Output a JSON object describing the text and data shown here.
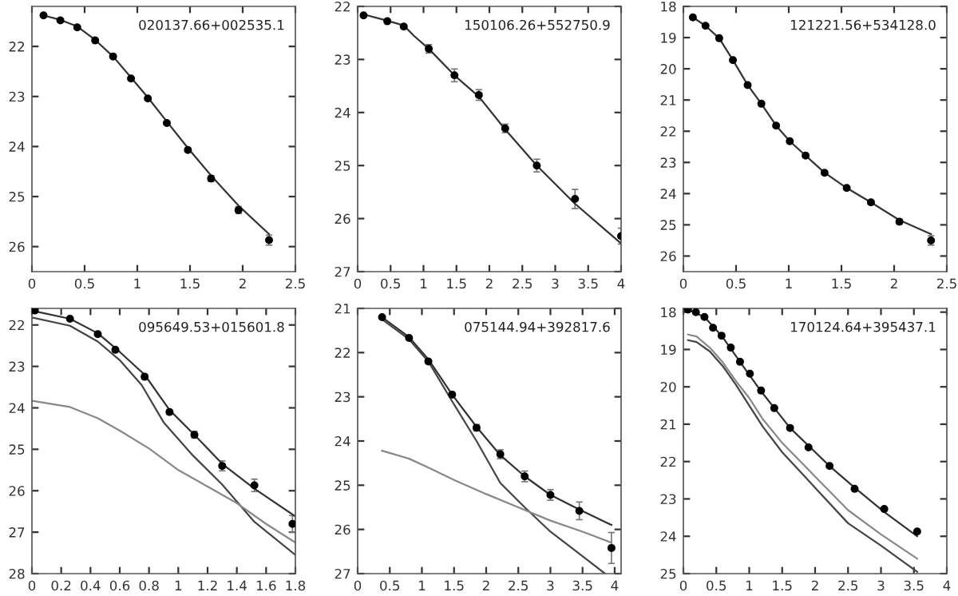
{
  "chart_data": [
    {
      "type": "scatter",
      "annotations": [
        "020137.66+002535.1"
      ],
      "xlim": [
        0,
        2.5
      ],
      "ylim": [
        26.5,
        21.2
      ],
      "xticks": [
        0,
        0.5,
        1,
        1.5,
        2,
        2.5
      ],
      "yticks": [
        22,
        23,
        24,
        25,
        26
      ],
      "grid": false,
      "series": [
        {
          "marker": "circle",
          "color": "#000000",
          "x": [
            0.11,
            0.27,
            0.43,
            0.6,
            0.77,
            0.94,
            1.1,
            1.28,
            1.48,
            1.7,
            1.96,
            2.25
          ],
          "values": [
            21.38,
            21.48,
            21.62,
            21.88,
            22.2,
            22.64,
            23.04,
            23.53,
            24.07,
            24.64,
            25.27,
            25.87
          ],
          "errors": [
            null,
            null,
            null,
            null,
            null,
            null,
            null,
            null,
            0.04,
            0.06,
            0.07,
            0.1
          ]
        },
        {
          "type": "line",
          "color": "#333333",
          "x": [
            0.11,
            0.27,
            0.43,
            0.6,
            0.77,
            0.94,
            1.1,
            1.28,
            1.48,
            1.7,
            1.96,
            2.25
          ],
          "values": [
            21.38,
            21.47,
            21.6,
            21.87,
            22.2,
            22.62,
            23.02,
            23.5,
            24.03,
            24.58,
            25.18,
            25.75
          ]
        }
      ]
    },
    {
      "type": "scatter",
      "annotations": [
        "150106.26+552750.9"
      ],
      "xlim": [
        0,
        4
      ],
      "ylim": [
        27,
        22
      ],
      "xticks": [
        0,
        0.5,
        1,
        1.5,
        2,
        2.5,
        3,
        3.5,
        4
      ],
      "yticks": [
        22,
        23,
        24,
        25,
        26,
        27
      ],
      "grid": false,
      "series": [
        {
          "marker": "circle",
          "color": "#000000",
          "x": [
            0.09,
            0.45,
            0.7,
            1.08,
            1.47,
            1.84,
            2.24,
            2.72,
            3.3,
            4.0
          ],
          "values": [
            22.17,
            22.28,
            22.38,
            22.8,
            23.3,
            23.67,
            24.3,
            25.0,
            25.63,
            26.33
          ],
          "errors": [
            null,
            null,
            null,
            0.08,
            0.12,
            0.1,
            0.08,
            0.12,
            0.18,
            0.15
          ]
        },
        {
          "type": "line",
          "color": "#333333",
          "x": [
            0.09,
            0.45,
            0.7,
            0.85,
            1.08,
            1.47,
            1.84,
            2.24,
            2.72,
            3.3,
            4.0
          ],
          "values": [
            22.15,
            22.27,
            22.36,
            22.55,
            22.8,
            23.3,
            23.7,
            24.32,
            25.0,
            25.72,
            26.47
          ]
        }
      ]
    },
    {
      "type": "scatter",
      "annotations": [
        "121221.56+534128.0"
      ],
      "xlim": [
        0,
        2.5
      ],
      "ylim": [
        26.5,
        18
      ],
      "xticks": [
        0,
        0.5,
        1,
        1.5,
        2,
        2.5
      ],
      "yticks": [
        18,
        19,
        20,
        21,
        22,
        23,
        24,
        25,
        26
      ],
      "grid": false,
      "series": [
        {
          "marker": "circle",
          "color": "#000000",
          "x": [
            0.09,
            0.21,
            0.34,
            0.47,
            0.61,
            0.74,
            0.88,
            1.01,
            1.16,
            1.34,
            1.55,
            1.78,
            2.05,
            2.35
          ],
          "values": [
            18.35,
            18.62,
            19.02,
            19.72,
            20.52,
            21.12,
            21.82,
            22.32,
            22.78,
            23.33,
            23.82,
            24.28,
            24.9,
            25.5
          ],
          "errors": [
            null,
            null,
            null,
            null,
            null,
            null,
            null,
            null,
            null,
            null,
            null,
            0.06,
            0.08,
            0.15
          ]
        },
        {
          "type": "line",
          "color": "#333333",
          "x": [
            0.09,
            0.21,
            0.34,
            0.47,
            0.61,
            0.74,
            0.88,
            1.01,
            1.16,
            1.34,
            1.55,
            1.78,
            2.05,
            2.35
          ],
          "values": [
            18.35,
            18.62,
            19.02,
            19.72,
            20.52,
            21.12,
            21.82,
            22.32,
            22.78,
            23.33,
            23.82,
            24.28,
            24.85,
            25.3
          ]
        }
      ]
    },
    {
      "type": "scatter",
      "annotations": [
        "095649.53+015601.8"
      ],
      "xlim": [
        0,
        1.8
      ],
      "ylim": [
        28,
        21.6
      ],
      "xticks": [
        0,
        0.2,
        0.4,
        0.6,
        0.8,
        1,
        1.2,
        1.4,
        1.6,
        1.8
      ],
      "yticks": [
        22,
        23,
        24,
        25,
        26,
        27,
        28
      ],
      "grid": false,
      "series": [
        {
          "marker": "circle",
          "color": "#000000",
          "x": [
            0.02,
            0.26,
            0.45,
            0.57,
            0.77,
            0.94,
            1.11,
            1.3,
            1.52,
            1.78
          ],
          "values": [
            21.65,
            21.85,
            22.22,
            22.6,
            23.25,
            24.1,
            24.65,
            25.4,
            25.87,
            26.8
          ],
          "errors": [
            null,
            null,
            null,
            null,
            0.06,
            0.06,
            0.08,
            0.12,
            0.15,
            0.2
          ]
        },
        {
          "type": "line",
          "color": "#333333",
          "x": [
            0.02,
            0.26,
            0.45,
            0.6,
            0.77,
            0.88,
            0.94,
            1.11,
            1.3,
            1.52,
            1.8
          ],
          "values": [
            21.67,
            21.85,
            22.2,
            22.65,
            23.2,
            23.75,
            24.05,
            24.65,
            25.35,
            25.95,
            26.62
          ]
        },
        {
          "type": "line",
          "color": "#444444",
          "x": [
            0,
            0.26,
            0.45,
            0.6,
            0.75,
            0.9,
            1.1,
            1.3,
            1.52,
            1.8
          ],
          "values": [
            21.82,
            22.02,
            22.4,
            22.85,
            23.45,
            24.35,
            25.15,
            25.85,
            26.75,
            27.55
          ]
        },
        {
          "type": "line",
          "color": "#888888",
          "x": [
            0,
            0.26,
            0.45,
            0.6,
            0.8,
            1.0,
            1.2,
            1.4,
            1.6,
            1.8
          ],
          "values": [
            23.83,
            23.98,
            24.25,
            24.55,
            24.98,
            25.5,
            25.9,
            26.3,
            26.8,
            27.25
          ]
        }
      ]
    },
    {
      "type": "scatter",
      "annotations": [
        "075144.94+392817.6"
      ],
      "xlim": [
        0,
        4.1
      ],
      "ylim": [
        27,
        21
      ],
      "xticks": [
        0,
        0.5,
        1,
        1.5,
        2,
        2.5,
        3,
        3.5,
        4
      ],
      "yticks": [
        21,
        22,
        23,
        24,
        25,
        26,
        27
      ],
      "grid": false,
      "series": [
        {
          "marker": "circle",
          "color": "#000000",
          "x": [
            0.38,
            0.8,
            1.1,
            1.47,
            1.85,
            2.22,
            2.6,
            3.0,
            3.45,
            3.95
          ],
          "values": [
            21.2,
            21.67,
            22.2,
            22.95,
            23.7,
            24.3,
            24.8,
            25.22,
            25.58,
            26.42
          ],
          "errors": [
            null,
            null,
            null,
            null,
            0.07,
            0.1,
            0.12,
            0.12,
            0.2,
            0.35
          ]
        },
        {
          "type": "line",
          "color": "#333333",
          "x": [
            0.38,
            0.8,
            1.1,
            1.47,
            1.85,
            2.22,
            2.6,
            3.0,
            3.45,
            3.95
          ],
          "values": [
            21.2,
            21.65,
            22.15,
            22.95,
            23.68,
            24.32,
            24.8,
            25.22,
            25.55,
            25.9
          ]
        },
        {
          "type": "line",
          "color": "#444444",
          "x": [
            0.38,
            0.8,
            1.1,
            1.47,
            1.85,
            2.22,
            2.6,
            3.0,
            3.45,
            3.85
          ],
          "values": [
            21.25,
            21.7,
            22.2,
            23.1,
            24.0,
            24.95,
            25.5,
            26.05,
            26.55,
            27.0
          ]
        },
        {
          "type": "line",
          "color": "#888888",
          "x": [
            0.38,
            0.8,
            1.1,
            1.5,
            2.0,
            2.5,
            3.0,
            3.5,
            3.95
          ],
          "values": [
            24.22,
            24.4,
            24.6,
            24.88,
            25.2,
            25.5,
            25.8,
            26.05,
            26.3
          ]
        }
      ]
    },
    {
      "type": "scatter",
      "annotations": [
        "170124.64+395437.1"
      ],
      "xlim": [
        0,
        4
      ],
      "ylim": [
        25,
        17.9
      ],
      "xticks": [
        0,
        0.5,
        1,
        1.5,
        2,
        2.5,
        3,
        3.5,
        4
      ],
      "yticks": [
        18,
        19,
        20,
        21,
        22,
        23,
        24,
        25
      ],
      "grid": false,
      "series": [
        {
          "marker": "circle",
          "color": "#000000",
          "x": [
            0.07,
            0.19,
            0.32,
            0.45,
            0.58,
            0.72,
            0.86,
            1.01,
            1.18,
            1.38,
            1.62,
            1.9,
            2.22,
            2.6,
            3.05,
            3.55
          ],
          "values": [
            17.93,
            18.0,
            18.13,
            18.42,
            18.63,
            18.95,
            19.33,
            19.65,
            20.1,
            20.57,
            21.1,
            21.62,
            22.12,
            22.73,
            23.27,
            23.87
          ]
        },
        {
          "type": "line",
          "color": "#333333",
          "x": [
            0.07,
            0.32,
            0.58,
            0.86,
            1.18,
            1.62,
            2.22,
            2.6,
            3.05,
            3.55
          ],
          "values": [
            17.93,
            18.13,
            18.63,
            19.33,
            20.12,
            21.1,
            22.12,
            22.7,
            23.35,
            24.0
          ]
        },
        {
          "type": "line",
          "color": "#888888",
          "x": [
            0.07,
            0.2,
            0.4,
            0.6,
            0.8,
            1.0,
            1.2,
            1.5,
            2.0,
            2.5,
            3.0,
            3.55
          ],
          "values": [
            18.6,
            18.65,
            18.95,
            19.35,
            19.85,
            20.3,
            20.85,
            21.5,
            22.4,
            23.3,
            23.95,
            24.6
          ]
        },
        {
          "type": "line",
          "color": "#444444",
          "x": [
            0.07,
            0.2,
            0.4,
            0.6,
            0.8,
            1.0,
            1.2,
            1.5,
            2.0,
            2.5,
            3.0,
            3.55
          ],
          "values": [
            18.75,
            18.8,
            19.05,
            19.45,
            19.95,
            20.5,
            21.05,
            21.75,
            22.7,
            23.65,
            24.25,
            24.95
          ]
        }
      ]
    }
  ]
}
